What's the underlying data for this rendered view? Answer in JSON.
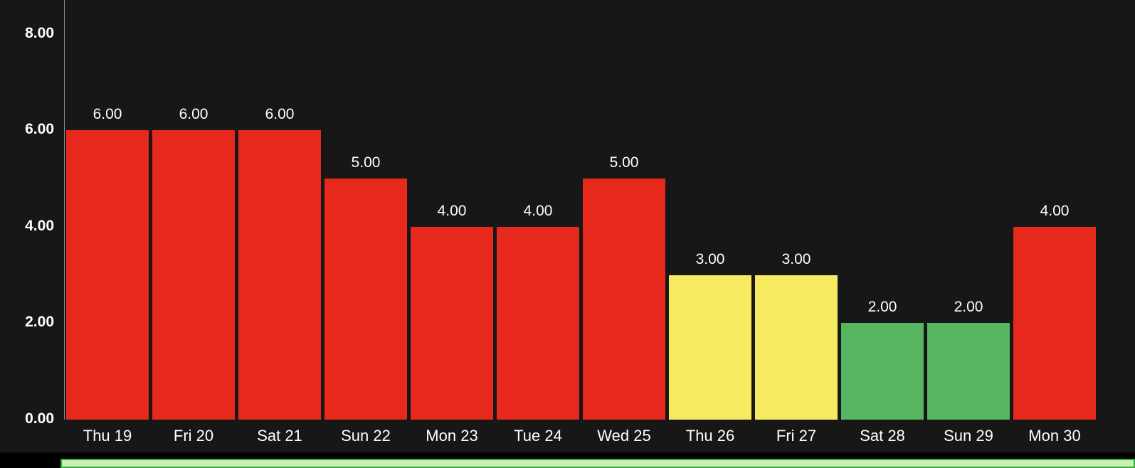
{
  "chart_data": {
    "type": "bar",
    "title": "",
    "xlabel": "",
    "ylabel": "",
    "categories": [
      "Thu 19",
      "Fri 20",
      "Sat 21",
      "Sun 22",
      "Mon 23",
      "Tue 24",
      "Wed 25",
      "Thu 26",
      "Fri 27",
      "Sat 28",
      "Sun 29",
      "Mon 30"
    ],
    "values": [
      6.0,
      6.0,
      6.0,
      5.0,
      4.0,
      4.0,
      5.0,
      3.0,
      3.0,
      2.0,
      2.0,
      4.0
    ],
    "value_labels": [
      "6.00",
      "6.00",
      "6.00",
      "5.00",
      "4.00",
      "4.00",
      "5.00",
      "3.00",
      "3.00",
      "2.00",
      "2.00",
      "4.00"
    ],
    "bar_color_keys": [
      "red",
      "red",
      "red",
      "red",
      "red",
      "red",
      "red",
      "yellow",
      "yellow",
      "green",
      "green",
      "red"
    ],
    "palette": {
      "red": "#e6291c",
      "yellow": "#f6ea61",
      "green": "#57b560"
    },
    "y_ticks": [
      8,
      6,
      4,
      2,
      0
    ],
    "y_tick_labels": [
      "8.00",
      "6.00",
      "4.00",
      "2.00",
      "0.00"
    ],
    "ylim": [
      0,
      8.7
    ],
    "grid": false,
    "legend": "none",
    "background_color": "#171717",
    "text_color": "#ffffff"
  },
  "bottom_strip": {
    "fill_color": "#cdeebb",
    "border_color": "#2fae2f"
  }
}
